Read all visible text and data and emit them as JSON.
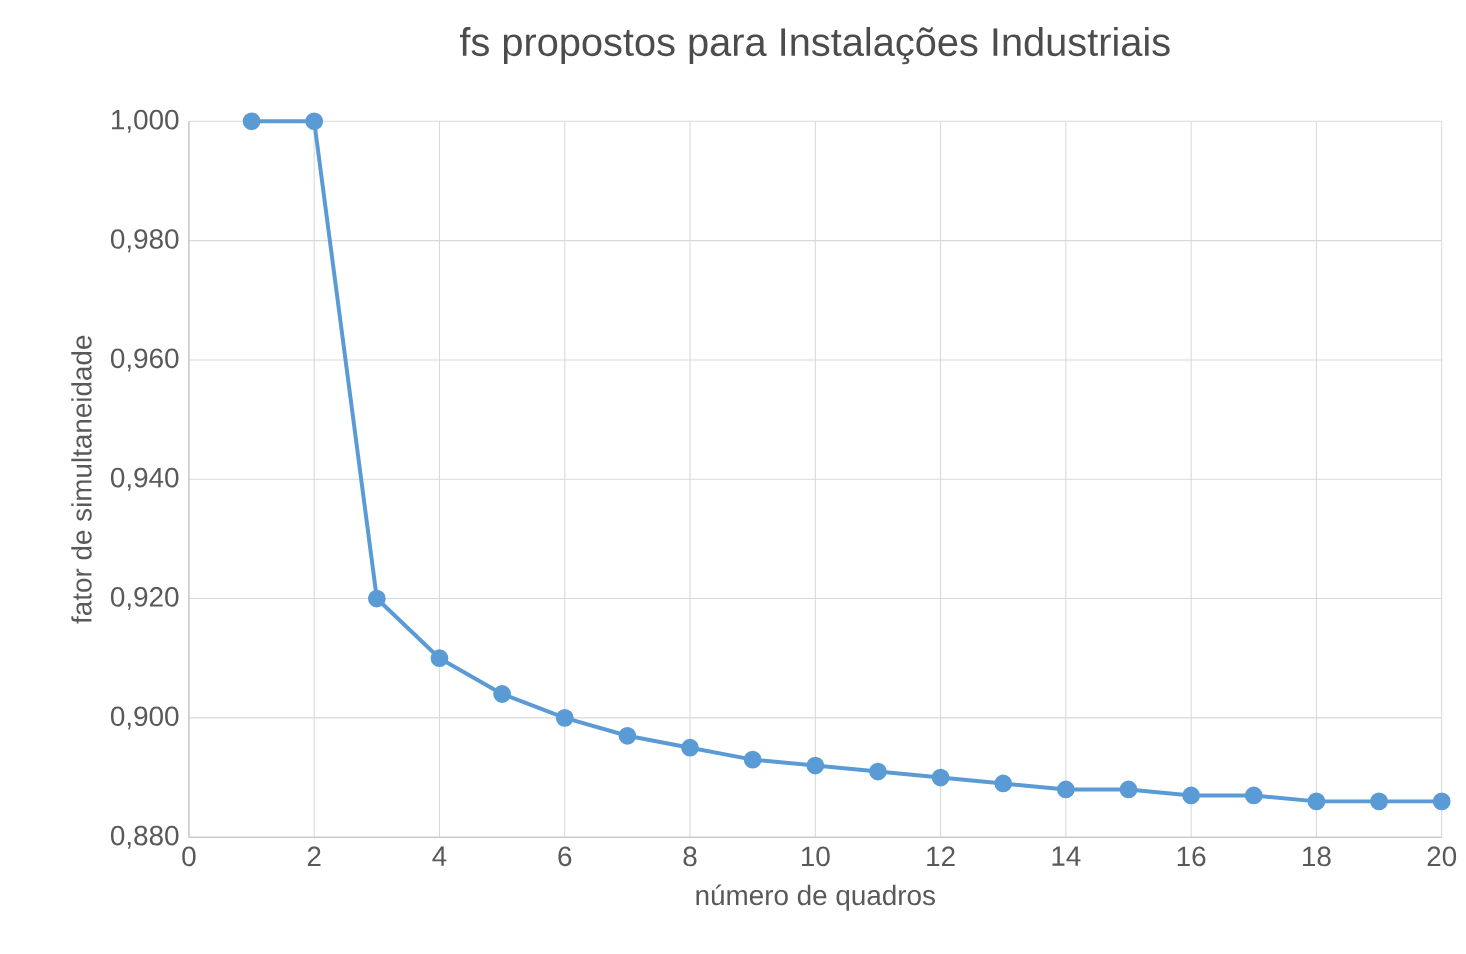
{
  "chart_data": {
    "type": "line",
    "title": "fs propostos para Instalações Industriais",
    "xlabel": "número de quadros",
    "ylabel": "fator de simultaneidade",
    "x": [
      1,
      2,
      3,
      4,
      5,
      6,
      7,
      8,
      9,
      10,
      11,
      12,
      13,
      14,
      15,
      16,
      17,
      18,
      19,
      20
    ],
    "series": [
      {
        "color": "#5b9bd5",
        "values": [
          1.0,
          1.0,
          0.92,
          0.91,
          0.904,
          0.9,
          0.897,
          0.895,
          0.893,
          0.892,
          0.891,
          0.89,
          0.889,
          0.888,
          0.888,
          0.887,
          0.887,
          0.886,
          0.886,
          0.886
        ]
      }
    ],
    "xlim": [
      0,
      20
    ],
    "ylim": [
      0.88,
      1.0
    ],
    "xticks": [
      0,
      2,
      4,
      6,
      8,
      10,
      12,
      14,
      16,
      18,
      20
    ],
    "yticks": [
      {
        "value": 0.88,
        "label": "0,880"
      },
      {
        "value": 0.9,
        "label": "0,900"
      },
      {
        "value": 0.92,
        "label": "0,920"
      },
      {
        "value": 0.94,
        "label": "0,940"
      },
      {
        "value": 0.96,
        "label": "0,960"
      },
      {
        "value": 0.98,
        "label": "0,980"
      },
      {
        "value": 1.0,
        "label": "1,000"
      }
    ],
    "grid": true,
    "marker": "circle",
    "line_style": "solid"
  }
}
